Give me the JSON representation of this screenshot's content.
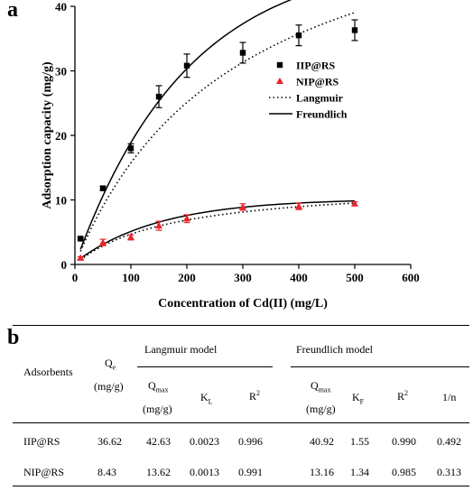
{
  "panel_a": {
    "letter": "a"
  },
  "panel_b": {
    "letter": "b"
  },
  "chart_data": {
    "type": "scatter",
    "xlabel": "Concentration of Cd(II) (mg/L)",
    "ylabel": "Adsorption capacity (mg/g)",
    "xlim": [
      0,
      600
    ],
    "ylim": [
      0,
      40
    ],
    "xticks": [
      0,
      100,
      200,
      300,
      400,
      500,
      600
    ],
    "yticks": [
      0,
      10,
      20,
      30,
      40
    ],
    "grid": false,
    "legend_position": "right-middle",
    "series": [
      {
        "name": "IIP@RS",
        "marker": "square",
        "color": "#000000",
        "x": [
          10,
          50,
          100,
          150,
          200,
          300,
          400,
          500
        ],
        "y": [
          4.0,
          11.8,
          18.0,
          26.0,
          30.8,
          32.8,
          35.5,
          36.3
        ],
        "err": [
          0.2,
          0.3,
          0.7,
          1.7,
          1.8,
          1.6,
          1.6,
          1.6
        ]
      },
      {
        "name": "NIP@RS",
        "marker": "triangle",
        "color": "#e8262a",
        "x": [
          10,
          50,
          100,
          150,
          200,
          300,
          400,
          500
        ],
        "y": [
          1.0,
          3.4,
          4.2,
          6.0,
          7.1,
          8.9,
          9.0,
          9.4
        ],
        "err": [
          0.2,
          0.5,
          0.4,
          0.7,
          0.6,
          0.5,
          0.5,
          0.3
        ]
      }
    ],
    "fits": [
      {
        "name": "Langmuir",
        "style": "dotted",
        "color": "#000000"
      },
      {
        "name": "Freundlich",
        "style": "solid",
        "color": "#000000"
      }
    ]
  },
  "table": {
    "col_headers": {
      "adsorbents": "Adsorbents",
      "qe": "Q",
      "qe_sub": "e",
      "qe_unit": "(mg/g)",
      "langmuir_group": "Langmuir model",
      "freundlich_group": "Freundlich model",
      "qmax": "Q",
      "qmax_sub": "max",
      "qmax_unit": "(mg/g)",
      "kl": "K",
      "kl_sub": "L",
      "r2": "R",
      "r2_sup": "2",
      "qmax2": "Q",
      "qmax2_sub": "max",
      "qmax2_unit": "(mg/g)",
      "kf": "K",
      "kf_sub": "F",
      "r2b": "R",
      "r2b_sup": "2",
      "n": "1/n"
    },
    "rows": [
      {
        "name": "IIP@RS",
        "qe": "36.62",
        "qmax": "42.63",
        "kl": "0.0023",
        "r2": "0.996",
        "qmax2": "40.92",
        "kf": "1.55",
        "r2b": "0.990",
        "n": "0.492"
      },
      {
        "name": "NIP@RS",
        "qe": "8.43",
        "qmax": "13.62",
        "kl": "0.0013",
        "r2": "0.991",
        "qmax2": "13.16",
        "kf": "1.34",
        "r2b": "0.985",
        "n": "0.313"
      }
    ]
  }
}
